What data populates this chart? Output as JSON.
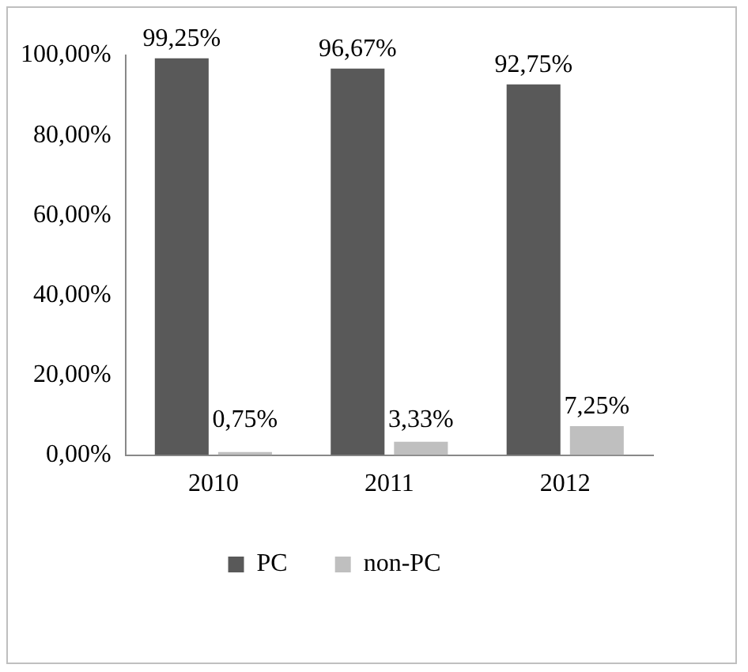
{
  "chart_data": {
    "type": "bar",
    "categories": [
      "2010",
      "2011",
      "2012"
    ],
    "series": [
      {
        "name": "PC",
        "color": "#595959",
        "values": [
          99.25,
          96.67,
          92.75
        ],
        "value_labels": [
          "99,25%",
          "96,67%",
          "92,75%"
        ]
      },
      {
        "name": "non-PC",
        "color": "#bfbfbf",
        "values": [
          0.75,
          3.33,
          7.25
        ],
        "value_labels": [
          "0,75%",
          "3,33%",
          "7,25%"
        ]
      }
    ],
    "ylim": [
      0,
      100
    ],
    "yticks": [
      {
        "value": 0,
        "label": "0,00%"
      },
      {
        "value": 20,
        "label": "20,00%"
      },
      {
        "value": 40,
        "label": "40,00%"
      },
      {
        "value": 60,
        "label": "60,00%"
      },
      {
        "value": 80,
        "label": "80,00%"
      },
      {
        "value": 100,
        "label": "100,00%"
      }
    ],
    "grid": false,
    "legend": "bottom"
  }
}
